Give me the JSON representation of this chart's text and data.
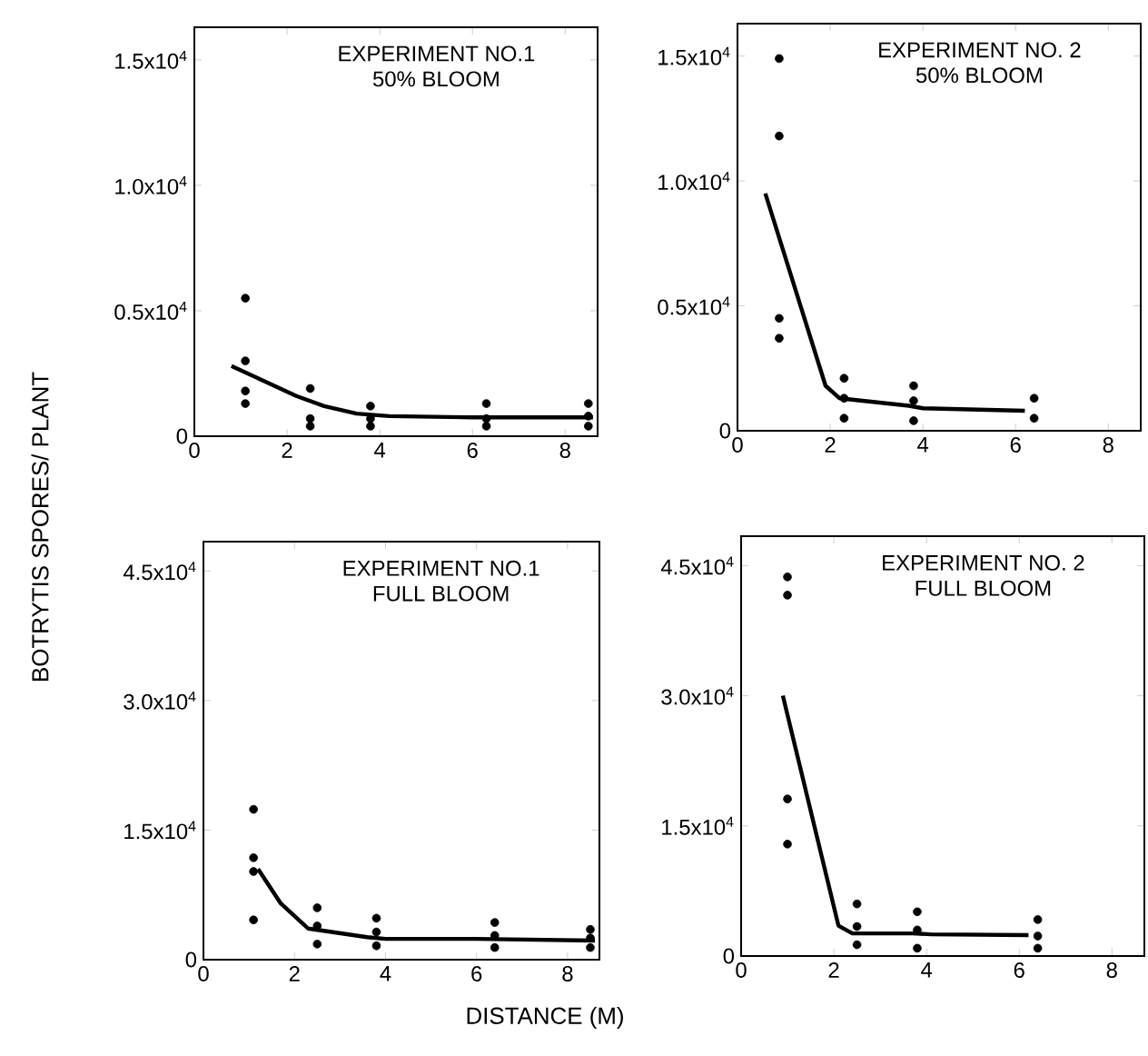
{
  "chart_data": [
    {
      "type": "scatter",
      "title": "EXPERIMENT NO.1",
      "subtitle": "50% BLOOM",
      "ylabel": "BOTRYTIS SPORES/ PLANT",
      "xlim": [
        0,
        8.7
      ],
      "xticks": [
        0,
        2,
        4,
        6,
        8
      ],
      "ylim": [
        0,
        16300
      ],
      "yticks": [
        0,
        {
          "value": 5000,
          "label": "0.5x10$^{4}$"
        },
        {
          "value": 10000,
          "label": "1.0x10$^{4}$"
        },
        {
          "value": 15000,
          "label": "1.5x10$^{4}$"
        }
      ],
      "series": [
        {
          "color": "#000000",
          "marker": "circle",
          "x": [
            1.1,
            1.1,
            1.1,
            1.1,
            2.5,
            2.5,
            2.5,
            3.8,
            3.8,
            3.8,
            6.3,
            6.3,
            6.3,
            8.5,
            8.5,
            8.5
          ],
          "values": [
            5500,
            3000,
            1800,
            1300,
            1900,
            700,
            400,
            1200,
            700,
            400,
            1300,
            700,
            400,
            1300,
            800,
            400
          ]
        },
        {
          "type": "line",
          "marker": "none",
          "color": "#000000",
          "x": [
            0.8,
            1.5,
            2.2,
            2.8,
            3.5,
            4.2,
            6.0,
            8.6
          ],
          "values": [
            2800,
            2200,
            1600,
            1200,
            900,
            800,
            750,
            750
          ]
        }
      ]
    },
    {
      "type": "scatter",
      "title": "EXPERIMENT NO. 2",
      "subtitle": "50% BLOOM",
      "xlim": [
        0,
        8.7
      ],
      "xticks": [
        0,
        2,
        4,
        6,
        8
      ],
      "ylim": [
        0,
        16300
      ],
      "yticks": [
        0,
        {
          "value": 5000,
          "label": "0.5x10$^{4}$"
        },
        {
          "value": 10000,
          "label": "1.0x10$^{4}$"
        },
        {
          "value": 15000,
          "label": "1.5x10$^{4}$"
        }
      ],
      "series": [
        {
          "color": "#000000",
          "marker": "circle",
          "x": [
            0.9,
            0.9,
            0.9,
            0.9,
            2.3,
            2.3,
            2.3,
            3.8,
            3.8,
            3.8,
            6.4,
            6.4
          ],
          "values": [
            14900,
            11800,
            4500,
            3700,
            2100,
            1300,
            500,
            1800,
            1200,
            400,
            1300,
            500
          ]
        },
        {
          "type": "line",
          "marker": "none",
          "color": "#000000",
          "x": [
            0.6,
            1.9,
            2.2,
            3.7,
            4.0,
            6.2
          ],
          "values": [
            9500,
            1800,
            1300,
            1000,
            900,
            800
          ]
        }
      ]
    },
    {
      "type": "scatter",
      "title": "EXPERIMENT NO.1",
      "subtitle": "FULL BLOOM",
      "xlim": [
        0,
        8.7
      ],
      "xticks": [
        0,
        2,
        4,
        6,
        8
      ],
      "ylim": [
        0,
        48400
      ],
      "yticks": [
        0,
        {
          "value": 15000,
          "label": "1.5x10$^{4}$"
        },
        {
          "value": 30000,
          "label": "3.0x10$^{4}$"
        },
        {
          "value": 45000,
          "label": "4.5x10$^{4}$"
        }
      ],
      "series": [
        {
          "color": "#000000",
          "marker": "circle",
          "x": [
            1.1,
            1.1,
            1.1,
            1.1,
            2.5,
            2.5,
            2.5,
            3.8,
            3.8,
            3.8,
            6.4,
            6.4,
            6.4,
            8.5,
            8.5,
            8.5
          ],
          "values": [
            17400,
            11800,
            10200,
            4600,
            6000,
            3900,
            1800,
            4800,
            3200,
            1600,
            4300,
            2800,
            1400,
            3500,
            2500,
            1400
          ]
        },
        {
          "type": "line",
          "marker": "none",
          "color": "#000000",
          "x": [
            1.2,
            1.7,
            2.3,
            3.6,
            4.0,
            6.0,
            8.6
          ],
          "values": [
            10500,
            6500,
            3600,
            2600,
            2400,
            2400,
            2200
          ]
        }
      ]
    },
    {
      "type": "scatter",
      "title": "EXPERIMENT NO. 2",
      "subtitle": "FULL BLOOM",
      "xlabel": "DISTANCE (M)",
      "xlim": [
        0,
        8.7
      ],
      "xticks": [
        0,
        2,
        4,
        6,
        8
      ],
      "ylim": [
        0,
        48400
      ],
      "yticks": [
        0,
        {
          "value": 15000,
          "label": "1.5x10$^{4}$"
        },
        {
          "value": 30000,
          "label": "3.0x10$^{4}$"
        },
        {
          "value": 45000,
          "label": "4.5x10$^{4}$"
        }
      ],
      "series": [
        {
          "color": "#000000",
          "marker": "circle",
          "x": [
            1.0,
            1.0,
            1.0,
            1.0,
            2.5,
            2.5,
            2.5,
            3.8,
            3.8,
            3.8,
            6.4,
            6.4,
            6.4
          ],
          "values": [
            43700,
            41600,
            18100,
            12900,
            6000,
            3400,
            1300,
            5100,
            3000,
            900,
            4200,
            2300,
            900
          ]
        },
        {
          "type": "line",
          "marker": "none",
          "color": "#000000",
          "x": [
            0.9,
            2.1,
            2.4,
            3.7,
            4.1,
            6.2
          ],
          "values": [
            30000,
            3500,
            2600,
            2600,
            2500,
            2400
          ]
        }
      ]
    }
  ]
}
